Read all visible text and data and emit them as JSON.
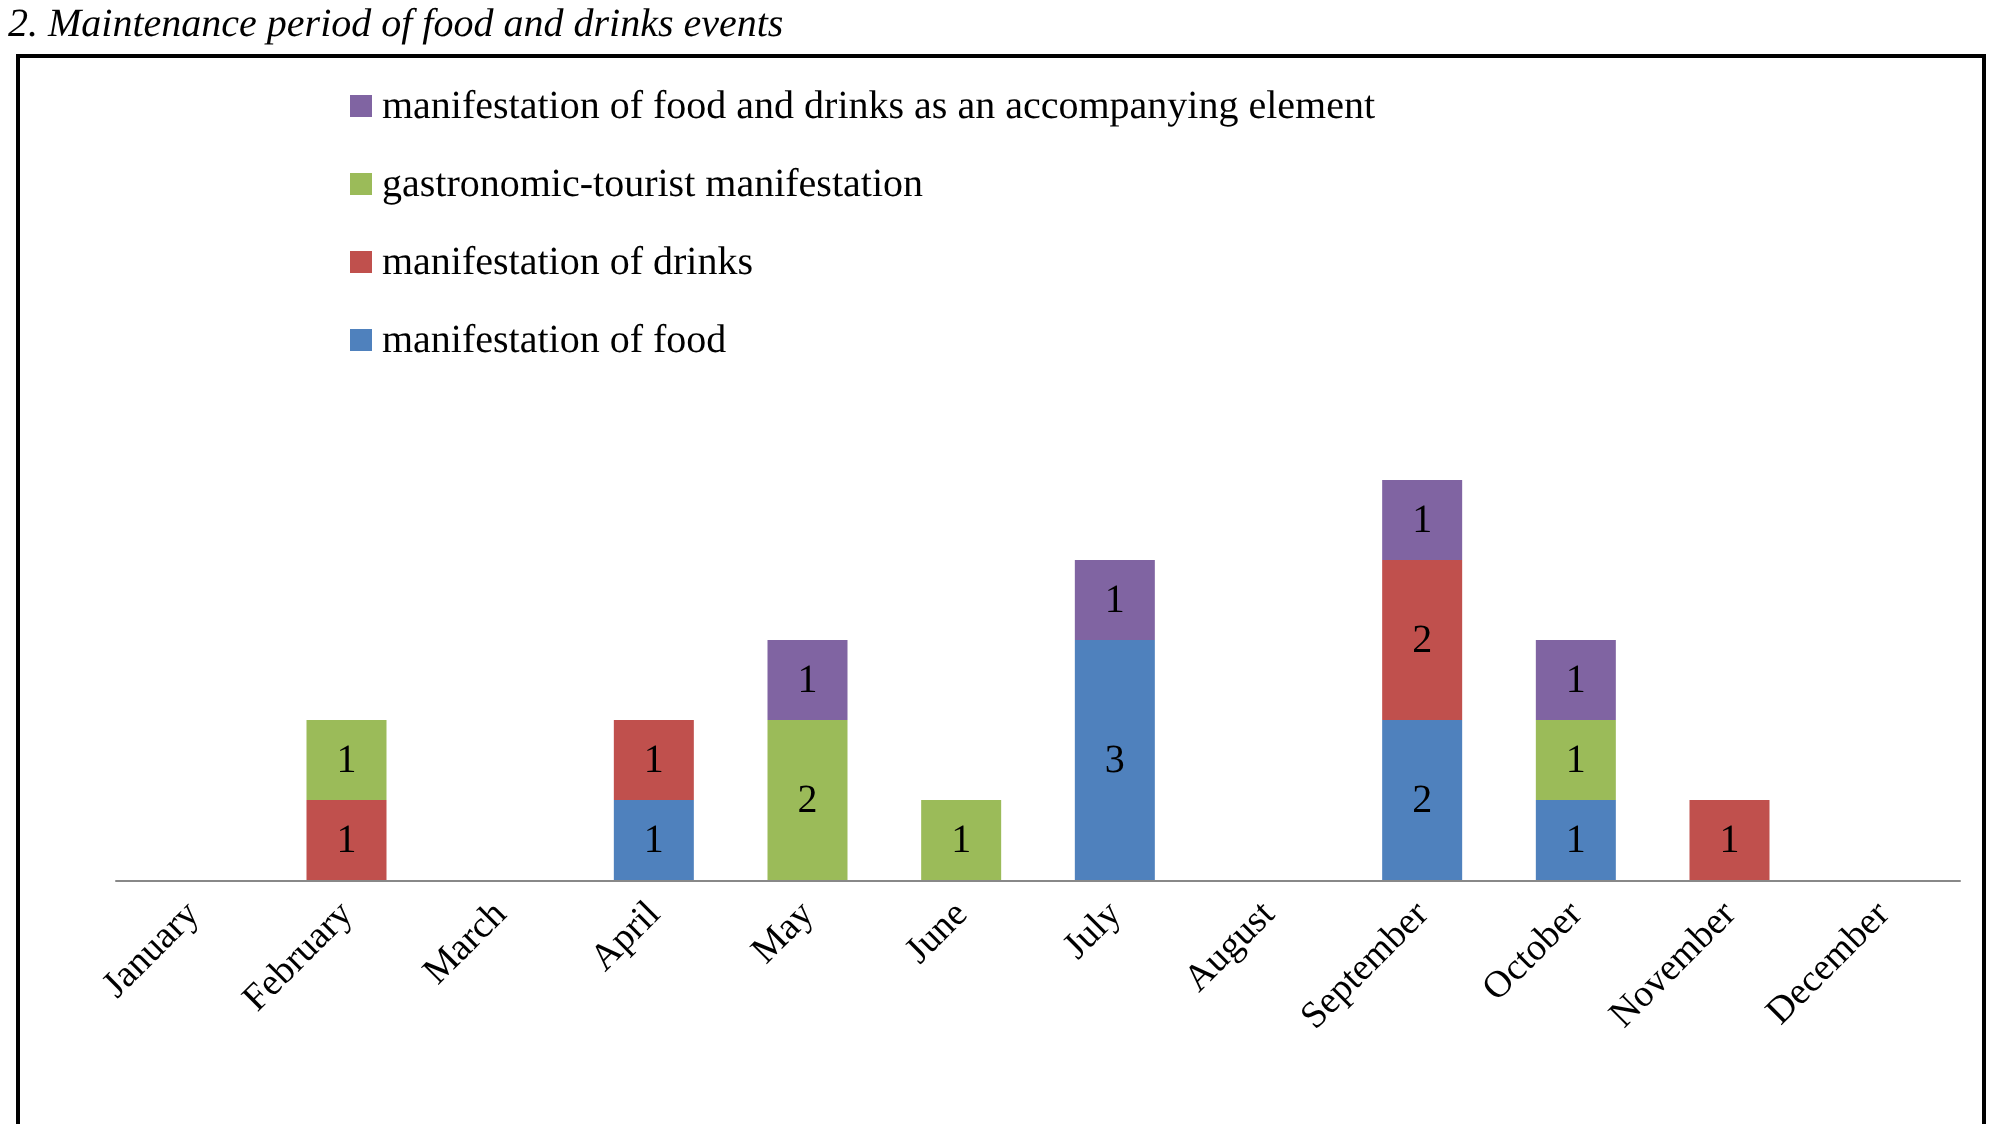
{
  "chart_data": {
    "type": "bar",
    "title": "2. Maintenance period of food and drinks events",
    "stacked": true,
    "data_labels": true,
    "legend": "top",
    "categories": [
      "January",
      "February",
      "March",
      "April",
      "May",
      "June",
      "July",
      "August",
      "September",
      "October",
      "November",
      "December"
    ],
    "series": [
      {
        "name": "manifestation of food",
        "color": "#4f81bd",
        "values": [
          null,
          null,
          null,
          1,
          null,
          null,
          3,
          null,
          2,
          1,
          null,
          null
        ]
      },
      {
        "name": "manifestation of drinks",
        "color": "#c0504d",
        "values": [
          null,
          1,
          null,
          1,
          null,
          null,
          null,
          null,
          2,
          null,
          1,
          null
        ]
      },
      {
        "name": "gastronomic-tourist manifestation",
        "color": "#9bbb59",
        "values": [
          null,
          1,
          null,
          null,
          2,
          1,
          null,
          null,
          null,
          1,
          null,
          null
        ]
      },
      {
        "name": "manifestation of food and drinks as an accompanying element",
        "color": "#8064a2",
        "values": [
          null,
          null,
          null,
          null,
          1,
          null,
          1,
          null,
          1,
          1,
          null,
          null
        ]
      }
    ]
  }
}
